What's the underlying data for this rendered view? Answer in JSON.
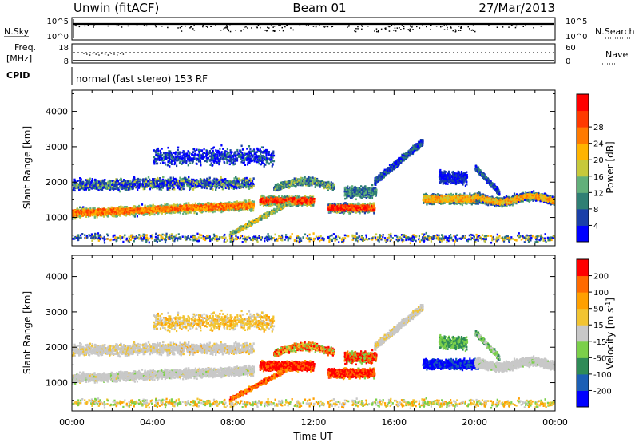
{
  "header": {
    "station": "Unwin (fitACF)",
    "beam": "Beam 01",
    "date": "27/Mar/2013"
  },
  "strip": {
    "nsky_label": "N.Sky",
    "nsky_ticks": [
      "10^5",
      "10^0"
    ],
    "nsearch_label": "N.Search",
    "nsearch_ticks": [
      "10^5",
      "10^0"
    ],
    "freq_label": "Freq.",
    "freq_unit": "[MHz]",
    "freq_ticks": [
      "18",
      "8"
    ],
    "nave_label": "Nave",
    "nave_ticks": [
      "60",
      "0"
    ],
    "cpid_label": "CPID",
    "cpid_text": "normal (fast stereo) 153 RF"
  },
  "chart_data": [
    {
      "type": "heatmap",
      "name": "power",
      "ylabel": "Slant Range [km]",
      "ylim": [
        200,
        4600
      ],
      "yticks": [
        1000,
        2000,
        3000,
        4000
      ],
      "colorbar": {
        "label": "Power [dB]",
        "ticks": [
          4,
          8,
          12,
          16,
          20,
          24,
          28
        ],
        "colors": [
          "#0000ff",
          "#1a3fa8",
          "#2f7f74",
          "#62b07a",
          "#c7c93a",
          "#ffb400",
          "#ff7a00",
          "#ff3a00",
          "#ff0000"
        ]
      },
      "bands": [
        {
          "t": [
            0.0,
            7.0
          ],
          "r": [
            1000,
            1400
          ],
          "level": "medium-high"
        },
        {
          "t": [
            0.0,
            9.0
          ],
          "r": [
            1600,
            2400
          ],
          "level": "low"
        },
        {
          "t": [
            9.5,
            11.5
          ],
          "r": [
            1200,
            1800
          ],
          "level": "high"
        },
        {
          "t": [
            13.0,
            15.0
          ],
          "r": [
            1000,
            1700
          ],
          "level": "high"
        },
        {
          "t": [
            17.5,
            20.0
          ],
          "r": [
            1100,
            1900
          ],
          "level": "medium"
        },
        {
          "t": [
            20.0,
            24.0
          ],
          "r": [
            1100,
            1900
          ],
          "level": "medium"
        }
      ]
    },
    {
      "type": "heatmap",
      "name": "velocity",
      "xlabel": "Time UT",
      "ylabel": "Slant Range [km]",
      "xlim": [
        0,
        24
      ],
      "xticks": [
        "00:00",
        "04:00",
        "08:00",
        "12:00",
        "16:00",
        "20:00",
        "00:00"
      ],
      "ylim": [
        200,
        4600
      ],
      "yticks": [
        1000,
        2000,
        3000,
        4000
      ],
      "colorbar": {
        "label": "Velocity [m s^-1]",
        "ticks": [
          200,
          100,
          50,
          15,
          -15,
          -50,
          -100,
          -200
        ],
        "colors": [
          "#0000ff",
          "#1b5fb5",
          "#2e8b57",
          "#7bd04a",
          "#c8c8c8",
          "#f2c431",
          "#ffa000",
          "#ff6a00",
          "#ff0000"
        ]
      },
      "bands": [
        {
          "t": [
            0.0,
            8.0
          ],
          "r": [
            900,
            2200
          ],
          "level": "ground-scatter"
        },
        {
          "t": [
            10.0,
            12.5
          ],
          "r": [
            1100,
            1900
          ],
          "level": "negative"
        },
        {
          "t": [
            13.0,
            15.0
          ],
          "r": [
            1000,
            1600
          ],
          "level": "negative"
        },
        {
          "t": [
            17.0,
            19.5
          ],
          "r": [
            1100,
            1800
          ],
          "level": "positive"
        },
        {
          "t": [
            19.5,
            24.0
          ],
          "r": [
            1100,
            2000
          ],
          "level": "ground-scatter"
        }
      ]
    }
  ]
}
